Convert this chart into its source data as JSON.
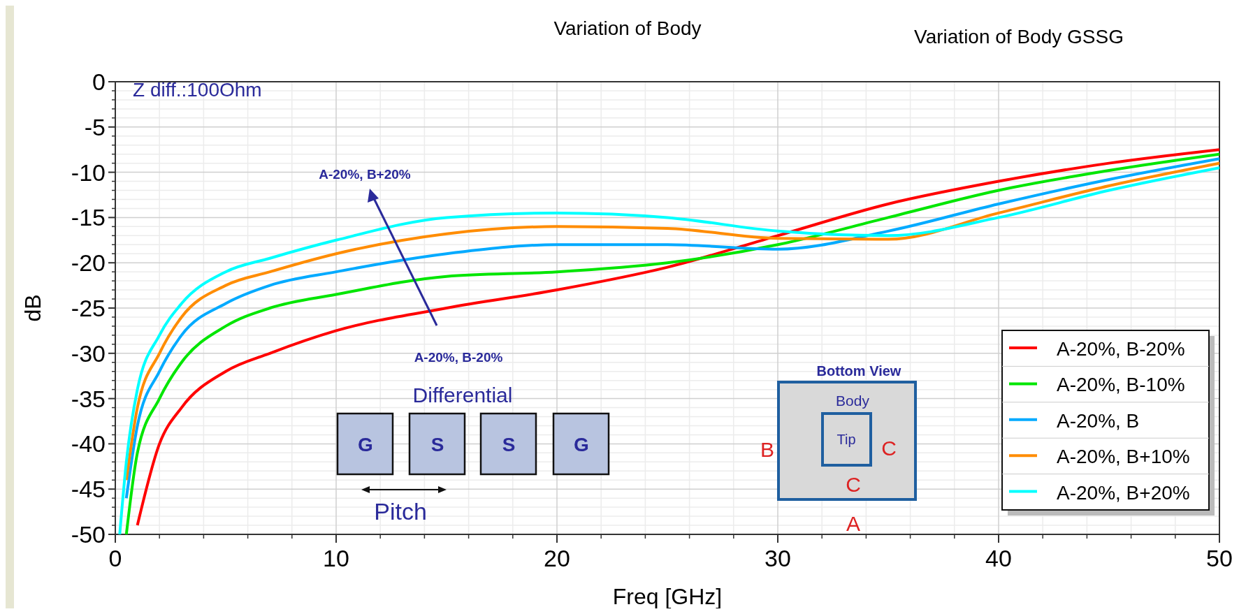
{
  "chart_data": {
    "type": "line",
    "title": "Variation of Body",
    "subtitle": "Variation of Body GSSG",
    "xlabel": "Freq [GHz]",
    "ylabel": "dB",
    "x": [
      0.2,
      0.5,
      1,
      2,
      3,
      5,
      7,
      10,
      15,
      20,
      25,
      30,
      35,
      40,
      45,
      50
    ],
    "series": [
      {
        "name": "A-20%, B-20%",
        "color": "#ff0000",
        "values": [
          null,
          null,
          -49,
          -40,
          -36,
          -32,
          -30,
          -27.5,
          -25,
          -23,
          -20.5,
          -17,
          -13.5,
          -11,
          -9,
          -7.5
        ]
      },
      {
        "name": "A-20%, B-10%",
        "color": "#00e600",
        "values": [
          null,
          -50,
          -41,
          -35,
          -31,
          -27,
          -25,
          -23.5,
          -21.5,
          -21,
          -20,
          -18,
          -15,
          -12,
          -9.8,
          -8
        ]
      },
      {
        "name": "A-20%, B",
        "color": "#00aaff",
        "values": [
          null,
          -46,
          -38,
          -32,
          -28,
          -24.5,
          -22.5,
          -21,
          -19,
          -18,
          -18,
          -18.5,
          -16.5,
          -13.5,
          -10.8,
          -8.5
        ]
      },
      {
        "name": "A-20%, B+10%",
        "color": "#ff8c00",
        "values": [
          null,
          -44,
          -36,
          -30,
          -26,
          -22.5,
          -21,
          -19,
          -16.8,
          -16,
          -16.2,
          -17.3,
          -17.4,
          -14.5,
          -11.5,
          -9
        ]
      },
      {
        "name": "A-20%, B+20%",
        "color": "#00ffff",
        "values": [
          -50,
          -42,
          -34,
          -28,
          -24.5,
          -21,
          -19.5,
          -17.5,
          -15,
          -14.5,
          -15,
          -16.5,
          -17,
          -15,
          -12,
          -9.5
        ]
      }
    ],
    "xlim": [
      0,
      50
    ],
    "xticks": [
      0,
      10,
      20,
      30,
      40,
      50
    ],
    "ylim": [
      -50,
      0
    ],
    "yticks": [
      0,
      -5,
      -10,
      -15,
      -20,
      -25,
      -30,
      -35,
      -40,
      -45,
      -50
    ],
    "grid": true,
    "legend": "bottom right",
    "line_style": "solid",
    "marker": "none",
    "annotations": [
      "Z diff.:100Ohm",
      "A-20%, B+20%",
      "A-20%, B-20%",
      "Differential",
      "G",
      "S",
      "S",
      "G",
      "Pitch",
      "Bottom View",
      "Body",
      "Tip",
      "B",
      "C",
      "C",
      "A"
    ]
  }
}
